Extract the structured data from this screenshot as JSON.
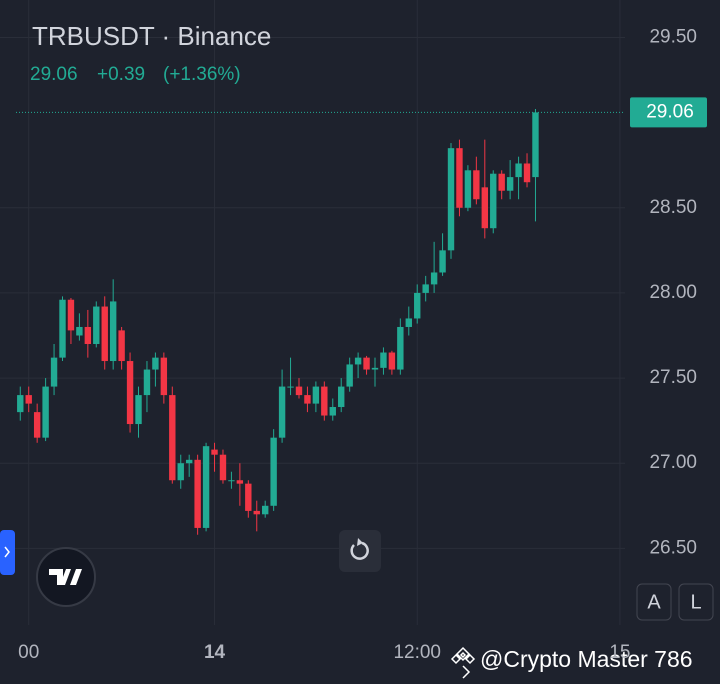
{
  "header": {
    "title": "TRBUSDT · Binance",
    "price": "29.06",
    "change": "+0.39",
    "change_pct": "(+1.36%)"
  },
  "chart_data": {
    "type": "candlestick",
    "open": [
      27.3,
      27.4,
      27.3,
      27.15,
      27.45,
      27.62,
      27.96,
      27.75,
      27.8,
      27.7,
      27.92,
      27.6,
      27.78,
      27.6,
      27.23,
      27.4,
      27.55,
      27.62,
      27.4,
      26.9,
      27.0,
      27.02,
      26.62,
      27.08,
      27.05,
      26.9,
      26.9,
      26.88,
      26.72,
      26.7,
      26.75,
      27.15,
      27.45,
      27.45,
      27.4,
      27.35,
      27.45,
      27.28,
      27.33,
      27.45,
      27.58,
      27.62,
      27.55,
      27.56,
      27.65,
      27.55,
      27.8,
      27.85,
      28.0,
      28.05,
      28.12,
      28.25,
      28.85,
      28.5,
      28.72,
      28.62,
      28.38,
      28.7,
      28.6,
      28.68,
      28.76,
      28.68
    ],
    "high": [
      27.45,
      27.45,
      27.35,
      27.5,
      27.7,
      27.98,
      27.97,
      27.88,
      27.9,
      27.95,
      27.98,
      28.08,
      27.8,
      27.65,
      27.45,
      27.6,
      27.65,
      27.65,
      27.45,
      27.05,
      27.05,
      27.05,
      27.12,
      27.12,
      27.08,
      26.95,
      27.0,
      26.9,
      26.78,
      26.78,
      27.2,
      27.55,
      27.62,
      27.5,
      27.45,
      27.48,
      27.48,
      27.38,
      27.5,
      27.62,
      27.65,
      27.63,
      27.62,
      27.68,
      27.66,
      27.85,
      27.92,
      28.05,
      28.1,
      28.3,
      28.35,
      28.88,
      28.9,
      28.75,
      28.8,
      28.9,
      28.72,
      28.72,
      28.78,
      28.8,
      28.82,
      29.08
    ],
    "low": [
      27.25,
      27.3,
      27.12,
      27.13,
      27.4,
      27.6,
      27.7,
      27.72,
      27.62,
      27.68,
      27.55,
      27.55,
      27.55,
      27.18,
      27.15,
      27.3,
      27.45,
      27.35,
      26.88,
      26.85,
      26.92,
      26.58,
      26.6,
      26.95,
      26.88,
      26.85,
      26.75,
      26.68,
      26.6,
      26.68,
      26.72,
      27.12,
      27.4,
      27.38,
      27.3,
      27.3,
      27.25,
      27.25,
      27.3,
      27.42,
      27.5,
      27.52,
      27.45,
      27.52,
      27.52,
      27.52,
      27.75,
      27.82,
      27.95,
      28.0,
      28.1,
      28.2,
      28.45,
      28.48,
      28.52,
      28.32,
      28.35,
      28.55,
      28.55,
      28.55,
      28.62,
      28.42
    ],
    "close": [
      27.4,
      27.35,
      27.15,
      27.45,
      27.62,
      27.96,
      27.78,
      27.8,
      27.7,
      27.92,
      27.6,
      27.95,
      27.6,
      27.23,
      27.4,
      27.55,
      27.62,
      27.4,
      26.9,
      27.0,
      27.02,
      26.62,
      27.1,
      27.05,
      26.9,
      26.9,
      26.88,
      26.72,
      26.7,
      26.75,
      27.15,
      27.45,
      27.45,
      27.4,
      27.35,
      27.45,
      27.28,
      27.33,
      27.45,
      27.58,
      27.62,
      27.55,
      27.56,
      27.65,
      27.55,
      27.8,
      27.85,
      28.0,
      28.05,
      28.12,
      28.25,
      28.85,
      28.5,
      28.72,
      28.55,
      28.38,
      28.7,
      28.6,
      28.68,
      28.76,
      28.65,
      29.06
    ],
    "up_color": "#22ab94",
    "down_color": "#f23645",
    "last_price": 29.06,
    "last_price_label": "29.06",
    "xlim": [
      -2.4,
      71.6
    ],
    "xticks": [
      {
        "value": 1,
        "label": "00"
      },
      {
        "value": 23,
        "label": "14"
      },
      {
        "value": 47,
        "label": "12:00"
      },
      {
        "value": 71,
        "label": "15"
      }
    ],
    "ylim": [
      26.05,
      29.72
    ],
    "yticks": [
      {
        "value": 26.5,
        "label": "26.50"
      },
      {
        "value": 27,
        "label": "27.00"
      },
      {
        "value": 27.5,
        "label": "27.50"
      },
      {
        "value": 28,
        "label": "28.00"
      },
      {
        "value": 28.5,
        "label": "28.50"
      },
      {
        "value": 29.5,
        "label": "29.50"
      }
    ],
    "grid": true
  },
  "buttons": {
    "auto": "A",
    "log": "L"
  },
  "watermark": "@Crypto Master 786"
}
